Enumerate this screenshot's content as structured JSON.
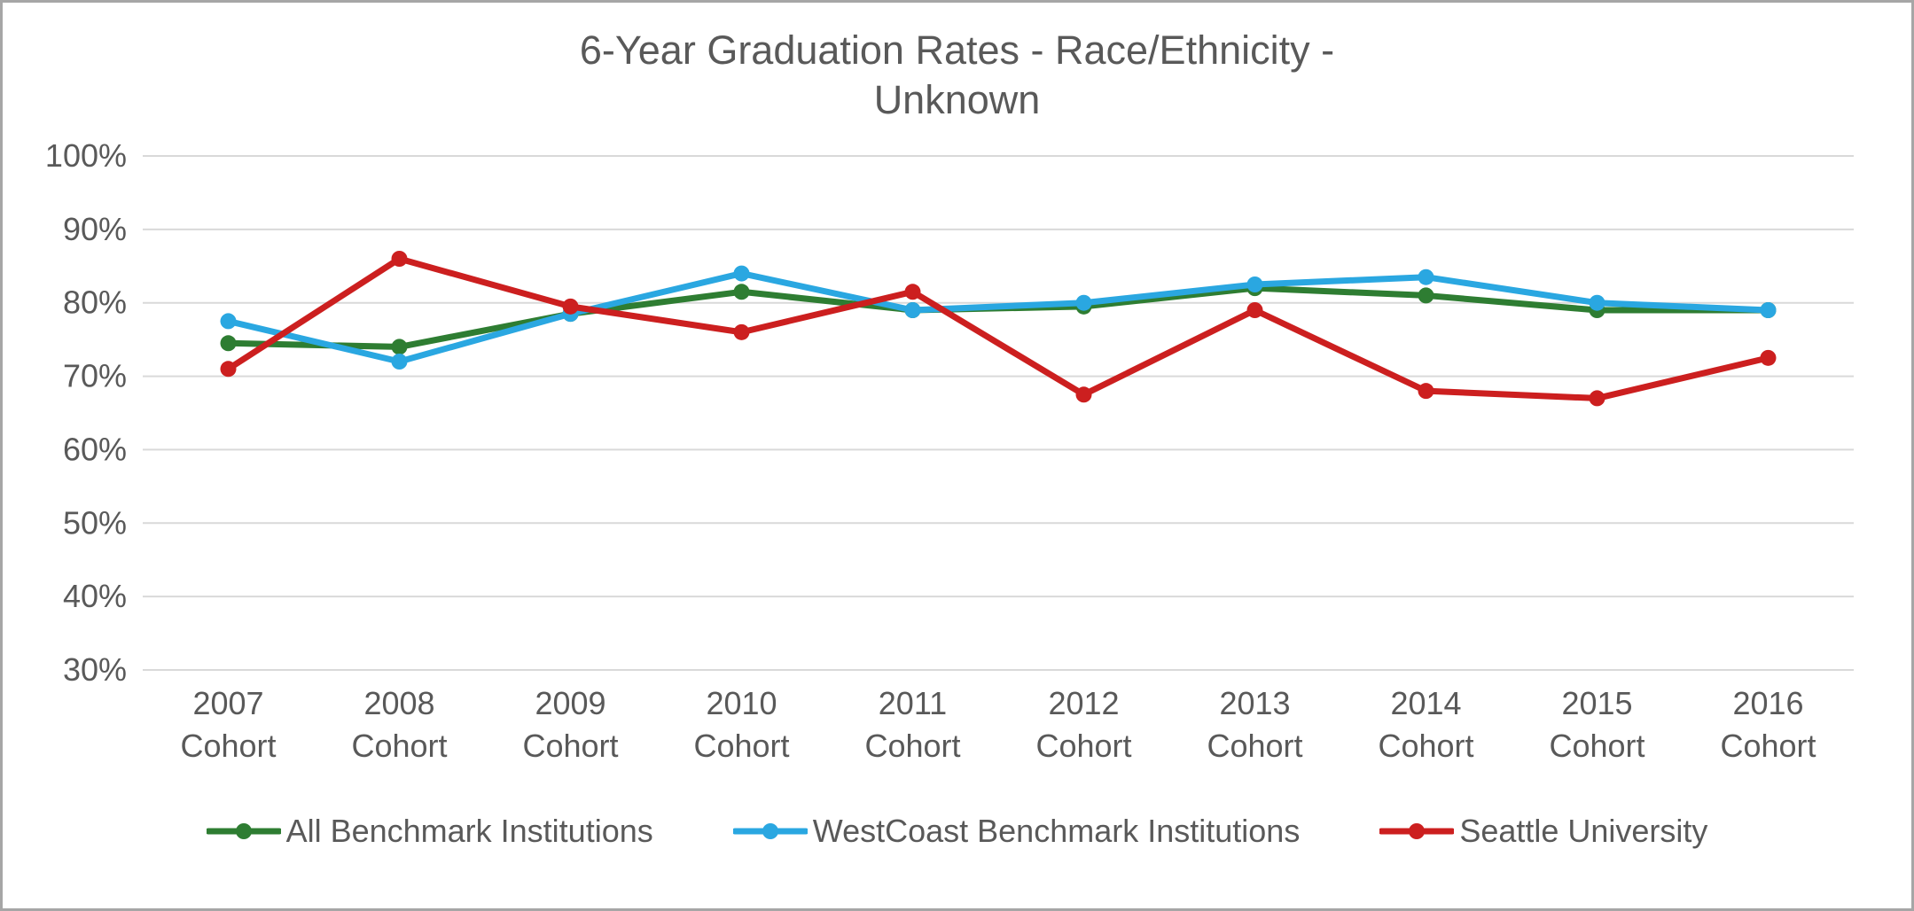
{
  "chart": {
    "type": "line",
    "title_line1": "6-Year Graduation Rates - Race/Ethnicity -",
    "title_line2": "Unknown",
    "title_fontsize": 45,
    "title_color": "#595959",
    "background_color": "#ffffff",
    "border_color": "#a6a6a6",
    "grid_color": "#d9d9d9",
    "axis_label_color": "#595959",
    "axis_fontsize": 36,
    "ylim": [
      30,
      100
    ],
    "ytick_step": 10,
    "y_suffix": "%",
    "x_labels_top": [
      "2007",
      "2008",
      "2009",
      "2010",
      "2011",
      "2012",
      "2013",
      "2014",
      "2015",
      "2016"
    ],
    "x_labels_bottom": [
      "Cohort",
      "Cohort",
      "Cohort",
      "Cohort",
      "Cohort",
      "Cohort",
      "Cohort",
      "Cohort",
      "Cohort",
      "Cohort"
    ],
    "line_width": 7,
    "marker_radius": 9,
    "legend_position": "bottom",
    "series": [
      {
        "name": "All Benchmark Institutions",
        "color": "#2e7d32",
        "marker": "circle",
        "values": [
          74.5,
          74,
          78.5,
          81.5,
          79,
          79.5,
          82,
          81,
          79,
          79
        ]
      },
      {
        "name": "WestCoast Benchmark Institutions",
        "color": "#2aa7e1",
        "marker": "circle",
        "values": [
          77.5,
          72,
          78.5,
          84,
          79,
          80,
          82.5,
          83.5,
          80,
          79
        ]
      },
      {
        "name": "Seattle University",
        "color": "#cc1f1f",
        "marker": "circle",
        "values": [
          71,
          86,
          79.5,
          76,
          81.5,
          67.5,
          79,
          68,
          67,
          72.5
        ]
      }
    ]
  }
}
